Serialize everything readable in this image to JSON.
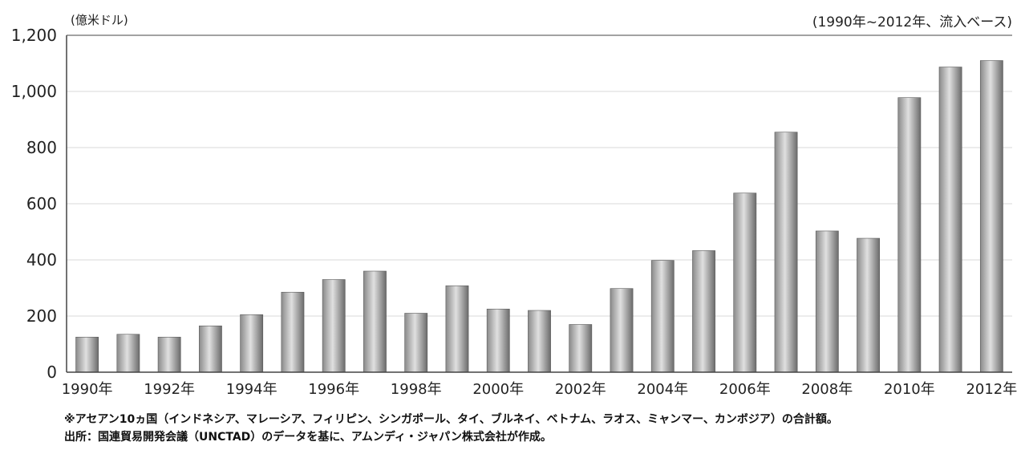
{
  "chart_data": {
    "type": "bar",
    "ylabel": "(億米ドル)",
    "subtitle": "(1990年~2012年、流入ベース)",
    "categories": [
      "1990年",
      "1991年",
      "1992年",
      "1993年",
      "1994年",
      "1995年",
      "1996年",
      "1997年",
      "1998年",
      "1999年",
      "2000年",
      "2001年",
      "2002年",
      "2003年",
      "2004年",
      "2005年",
      "2006年",
      "2007年",
      "2008年",
      "2009年",
      "2010年",
      "2011年",
      "2012年"
    ],
    "x_tick_labels": [
      "1990年",
      "",
      "1992年",
      "",
      "1994年",
      "",
      "1996年",
      "",
      "1998年",
      "",
      "2000年",
      "",
      "2002年",
      "",
      "2004年",
      "",
      "2006年",
      "",
      "2008年",
      "",
      "2010年",
      "",
      "2012年"
    ],
    "values": [
      125,
      135,
      125,
      165,
      205,
      285,
      330,
      360,
      210,
      308,
      225,
      220,
      170,
      298,
      398,
      433,
      638,
      855,
      503,
      477,
      978,
      1087,
      1110
    ],
    "ylim": [
      0,
      1200
    ],
    "y_ticks": [
      0,
      200,
      400,
      600,
      800,
      1000,
      1200
    ],
    "y_tick_labels": [
      "0",
      "200",
      "400",
      "600",
      "800",
      "1,000",
      "1,200"
    ],
    "grid": true,
    "colors": {
      "bar_dark": "#6b6b6b",
      "bar_light": "#d6d6d6",
      "grid": "#d9d9d9",
      "axis": "#444444"
    }
  },
  "notes": {
    "line1": "※アセアン10ヵ国（インドネシア、マレーシア、フィリピン、シンガポール、タイ、ブルネイ、ベトナム、ラオス、ミャンマー、カンボジア）の合計額。",
    "line2": "出所：国連貿易開発会議（UNCTAD）のデータを基に、アムンディ・ジャパン株式会社が作成。"
  }
}
